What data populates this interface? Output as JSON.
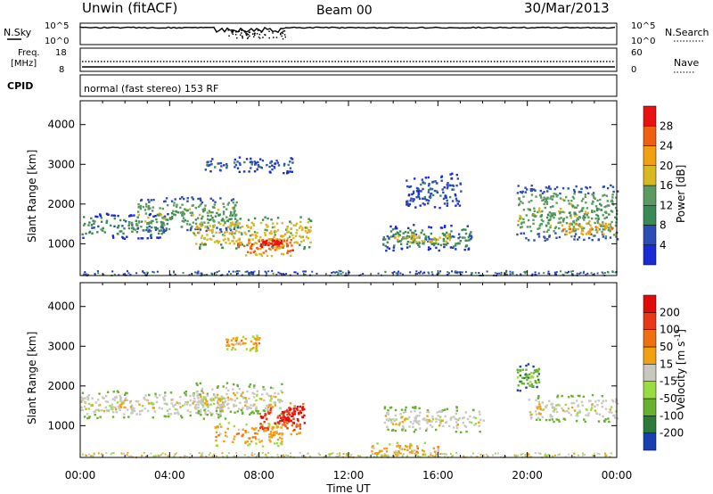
{
  "header": {
    "station": "Unwin (fitACF)",
    "beam": "Beam 00",
    "date": "30/Mar/2013"
  },
  "noise_panel": {
    "left_label": "N.Sky",
    "left_ticks": [
      "10^5",
      "10^0"
    ],
    "right_ticks": [
      "10^5",
      "10^0"
    ],
    "right_label": "N.Search"
  },
  "freq_panel": {
    "left_label_top": "Freq.",
    "left_label_unit": "[MHz]",
    "left_ticks": [
      "18",
      "8"
    ],
    "right_ticks": [
      "60",
      "0"
    ],
    "right_label": "Nave"
  },
  "cpid": {
    "label": "CPID",
    "text": "normal (fast stereo) 153 RF"
  },
  "colors": {
    "power_scale": [
      "#1a2bd6",
      "#2b4db5",
      "#3a8a55",
      "#5a9a60",
      "#d8b820",
      "#f0a010",
      "#f06010",
      "#e81010"
    ],
    "velocity_scale": [
      "#1a3fb0",
      "#2c7a3a",
      "#68b030",
      "#9adc40",
      "#c8c8c0",
      "#f0a010",
      "#ef7010",
      "#e83818",
      "#e00c0c"
    ]
  },
  "chart_data": [
    {
      "type": "heatmap",
      "panel": "power",
      "ylabel": "Slant Range [km]",
      "yticks": [
        1000,
        2000,
        3000,
        4000
      ],
      "ylim": [
        200,
        4600
      ],
      "xlim": [
        0,
        24
      ],
      "xlabel": "Time UT",
      "xticks": [
        "00:00",
        "04:00",
        "08:00",
        "12:00",
        "16:00",
        "20:00",
        "00:00"
      ],
      "colorbar": {
        "label": "Power [dB]",
        "ticks": [
          "4",
          "8",
          "12",
          "16",
          "20",
          "24",
          "28"
        ]
      },
      "echo_regions": [
        {
          "t0": 0.0,
          "t1": 4.0,
          "r0": 1150,
          "r1": 1800,
          "level": 2
        },
        {
          "t0": 2.5,
          "t1": 7.0,
          "r0": 1300,
          "r1": 2200,
          "level": 3
        },
        {
          "t0": 5.0,
          "t1": 10.3,
          "r0": 900,
          "r1": 1700,
          "level": 4
        },
        {
          "t0": 7.0,
          "t1": 9.5,
          "r0": 700,
          "r1": 1200,
          "level": 6
        },
        {
          "t0": 8.0,
          "t1": 9.0,
          "r0": 900,
          "r1": 1150,
          "level": 7
        },
        {
          "t0": 5.5,
          "t1": 9.5,
          "r0": 2800,
          "r1": 3200,
          "level": 1
        },
        {
          "t0": 13.5,
          "t1": 17.5,
          "r0": 850,
          "r1": 1500,
          "level": 2
        },
        {
          "t0": 14.0,
          "t1": 16.5,
          "r0": 1000,
          "r1": 1300,
          "level": 4
        },
        {
          "t0": 14.5,
          "t1": 17.0,
          "r0": 1900,
          "r1": 2800,
          "level": 1
        },
        {
          "t0": 19.5,
          "t1": 24.0,
          "r0": 1100,
          "r1": 2500,
          "level": 3
        },
        {
          "t0": 21.5,
          "t1": 24.0,
          "r0": 1200,
          "r1": 1600,
          "level": 5
        }
      ]
    },
    {
      "type": "heatmap",
      "panel": "velocity",
      "ylabel": "Slant Range [km]",
      "yticks": [
        1000,
        2000,
        3000,
        4000
      ],
      "ylim": [
        200,
        4600
      ],
      "xlim": [
        0,
        24
      ],
      "xlabel": "Time UT",
      "xticks": [
        "00:00",
        "04:00",
        "08:00",
        "12:00",
        "16:00",
        "20:00",
        "00:00"
      ],
      "colorbar": {
        "label": "Velocity [m s^-1]",
        "ticks": [
          "200",
          "100",
          "50",
          "15",
          "-15",
          "-50",
          "-100",
          "-200"
        ]
      },
      "echo_regions": [
        {
          "t0": 0.0,
          "t1": 6.5,
          "r0": 1200,
          "r1": 1900,
          "level": 4
        },
        {
          "t0": 5.0,
          "t1": 9.0,
          "r0": 1300,
          "r1": 2100,
          "level": 4
        },
        {
          "t0": 6.0,
          "t1": 9.0,
          "r0": 500,
          "r1": 1100,
          "level": 5
        },
        {
          "t0": 8.0,
          "t1": 9.8,
          "r0": 800,
          "r1": 1600,
          "level": 7
        },
        {
          "t0": 9.0,
          "t1": 10.0,
          "r0": 1000,
          "r1": 1600,
          "level": 8
        },
        {
          "t0": 6.5,
          "t1": 8.0,
          "r0": 2900,
          "r1": 3300,
          "level": 5
        },
        {
          "t0": 13.5,
          "t1": 18.0,
          "r0": 850,
          "r1": 1500,
          "level": 4
        },
        {
          "t0": 13.0,
          "t1": 16.0,
          "r0": 250,
          "r1": 600,
          "level": 5
        },
        {
          "t0": 19.5,
          "t1": 20.5,
          "r0": 1900,
          "r1": 2600,
          "level": 2
        },
        {
          "t0": 20.0,
          "t1": 24.0,
          "r0": 1100,
          "r1": 1800,
          "level": 4
        }
      ]
    }
  ]
}
